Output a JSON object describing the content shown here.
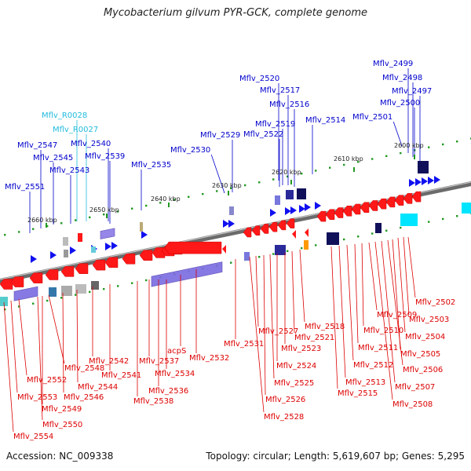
{
  "title": "Mycobacterium gilvum PYR-GCK, complete genome",
  "footer": {
    "accession": "Accession: NC_009338",
    "summary": "Topology: circular; Length: 5,619,607 bp; Genes: 5,295"
  },
  "colors": {
    "backbone": "#777777",
    "forward_cds": "#1a1aff",
    "reverse_cds": "#ff1a1a",
    "forward_label": "#0000cc",
    "reverse_label": "#dd0000",
    "rna_label": "#22bbdd",
    "ticks": "#229922",
    "domain_bar": "#6f5fd0"
  },
  "scale": {
    "ticks": [
      "2600 kbp",
      "2610 kbp",
      "2620 kbp",
      "2630 kbp",
      "2640 kbp",
      "2650 kbp",
      "2660 kbp"
    ]
  },
  "labels": {
    "forward": [
      "Mflv_2499",
      "Mflv_2498",
      "Mflv_2497",
      "Mflv_2500",
      "Mflv_2501",
      "Mflv_2520",
      "Mflv_2517",
      "Mflv_2516",
      "Mflv_2514",
      "Mflv_2519",
      "Mflv_2522",
      "Mflv_2529",
      "Mflv_2530",
      "Mflv_2535",
      "Mflv_2540",
      "Mflv_2539",
      "Mflv_2547",
      "Mflv_2545",
      "Mflv_2543",
      "Mflv_2551"
    ],
    "rna": [
      "Mflv_R0028",
      "Mflv_R0027"
    ],
    "reverse": [
      "Mflv_2502",
      "Mflv_2503",
      "Mflv_2504",
      "Mflv_2505",
      "Mflv_2506",
      "Mflv_2507",
      "Mflv_2508",
      "Mflv_2509",
      "Mflv_2510",
      "Mflv_2511",
      "Mflv_2512",
      "Mflv_2513",
      "Mflv_2515",
      "Mflv_2518",
      "Mflv_2521",
      "Mflv_2523",
      "Mflv_2524",
      "Mflv_2525",
      "Mflv_2526",
      "Mflv_2527",
      "Mflv_2528",
      "Mflv_2531",
      "Mflv_2532",
      "acpS",
      "Mflv_2534",
      "Mflv_2536",
      "Mflv_2537",
      "Mflv_2538",
      "Mflv_2541",
      "Mflv_2542",
      "Mflv_2544",
      "Mflv_2546",
      "Mflv_2548",
      "Mflv_2549",
      "Mflv_2550",
      "Mflv_2552",
      "Mflv_2553",
      "Mflv_2554"
    ]
  }
}
